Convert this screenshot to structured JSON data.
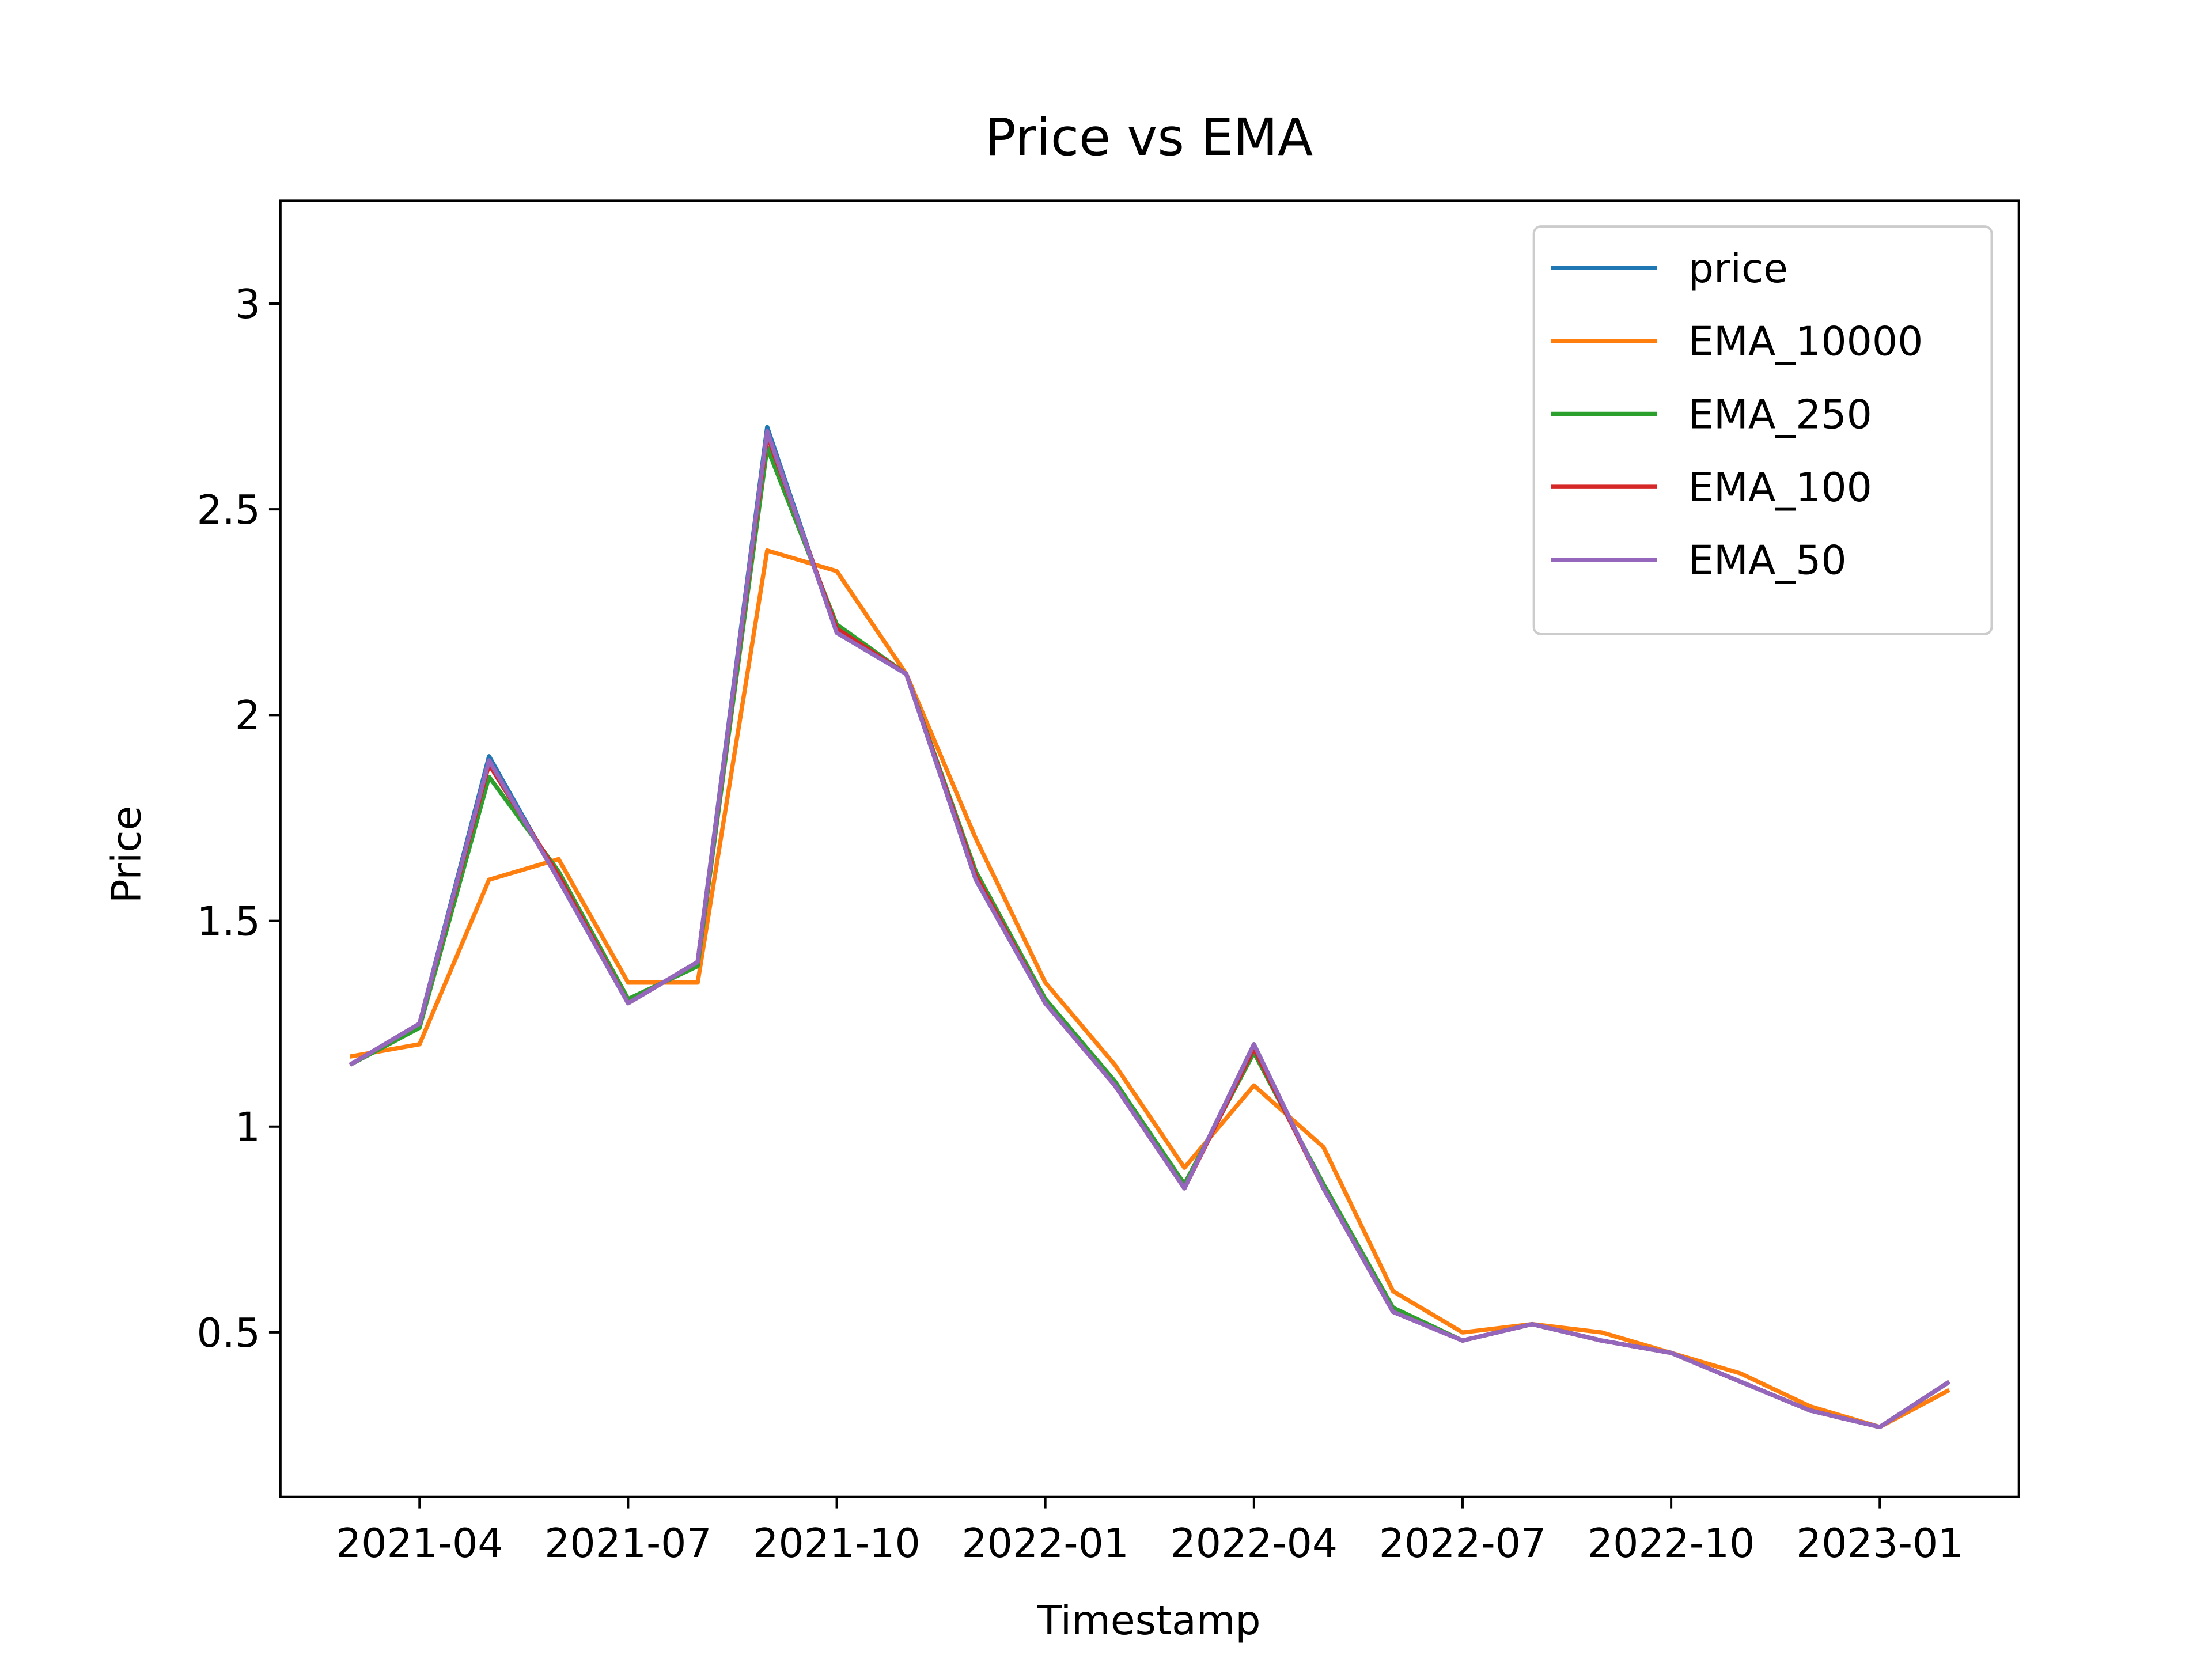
{
  "chart_data": {
    "type": "line",
    "title": "Price vs EMA",
    "xlabel": "Timestamp",
    "ylabel": "Price",
    "x": [
      "2021-03",
      "2021-04",
      "2021-05",
      "2021-06",
      "2021-07",
      "2021-08",
      "2021-09",
      "2021-10",
      "2021-11",
      "2021-12",
      "2022-01",
      "2022-02",
      "2022-03",
      "2022-04",
      "2022-05",
      "2022-06",
      "2022-07",
      "2022-08",
      "2022-09",
      "2022-10",
      "2022-11",
      "2022-12",
      "2023-01",
      "2023-02"
    ],
    "series": [
      {
        "name": "price",
        "color": "#1f77b4",
        "values": [
          1.15,
          1.25,
          1.9,
          1.6,
          1.3,
          1.4,
          2.7,
          2.2,
          2.1,
          1.6,
          1.3,
          1.1,
          0.85,
          1.2,
          0.85,
          0.55,
          0.48,
          0.52,
          0.48,
          0.45,
          0.38,
          0.31,
          0.27,
          0.38
        ]
      },
      {
        "name": "EMA_10000",
        "color": "#ff7f0e",
        "values": [
          1.17,
          1.2,
          1.6,
          1.65,
          1.35,
          1.35,
          2.4,
          2.35,
          2.1,
          1.7,
          1.35,
          1.15,
          0.9,
          1.1,
          0.95,
          0.6,
          0.5,
          0.52,
          0.5,
          0.45,
          0.4,
          0.32,
          0.27,
          0.36
        ]
      },
      {
        "name": "EMA_250",
        "color": "#2ca02c",
        "values": [
          1.15,
          1.24,
          1.85,
          1.62,
          1.31,
          1.39,
          2.65,
          2.22,
          2.1,
          1.62,
          1.31,
          1.11,
          0.86,
          1.18,
          0.86,
          0.56,
          0.48,
          0.52,
          0.48,
          0.45,
          0.38,
          0.31,
          0.27,
          0.38
        ]
      },
      {
        "name": "EMA_100",
        "color": "#d62728",
        "values": [
          1.15,
          1.25,
          1.88,
          1.61,
          1.3,
          1.4,
          2.68,
          2.21,
          2.1,
          1.61,
          1.3,
          1.1,
          0.85,
          1.19,
          0.85,
          0.55,
          0.48,
          0.52,
          0.48,
          0.45,
          0.38,
          0.31,
          0.27,
          0.38
        ]
      },
      {
        "name": "EMA_50",
        "color": "#9467bd",
        "values": [
          1.15,
          1.25,
          1.89,
          1.6,
          1.3,
          1.4,
          2.69,
          2.2,
          2.1,
          1.6,
          1.3,
          1.1,
          0.85,
          1.2,
          0.85,
          0.55,
          0.48,
          0.52,
          0.48,
          0.45,
          0.38,
          0.31,
          0.27,
          0.38
        ]
      }
    ],
    "xlim": [
      "2021-02",
      "2023-03"
    ],
    "xticks": [
      "2021-04",
      "2021-07",
      "2021-10",
      "2022-01",
      "2022-04",
      "2022-07",
      "2022-10",
      "2023-01"
    ],
    "ylim": [
      0.1,
      3.25
    ],
    "yticks": [
      0.5,
      1.0,
      1.5,
      2.0,
      2.5,
      3.0
    ],
    "legend": "upper right",
    "grid": false
  }
}
